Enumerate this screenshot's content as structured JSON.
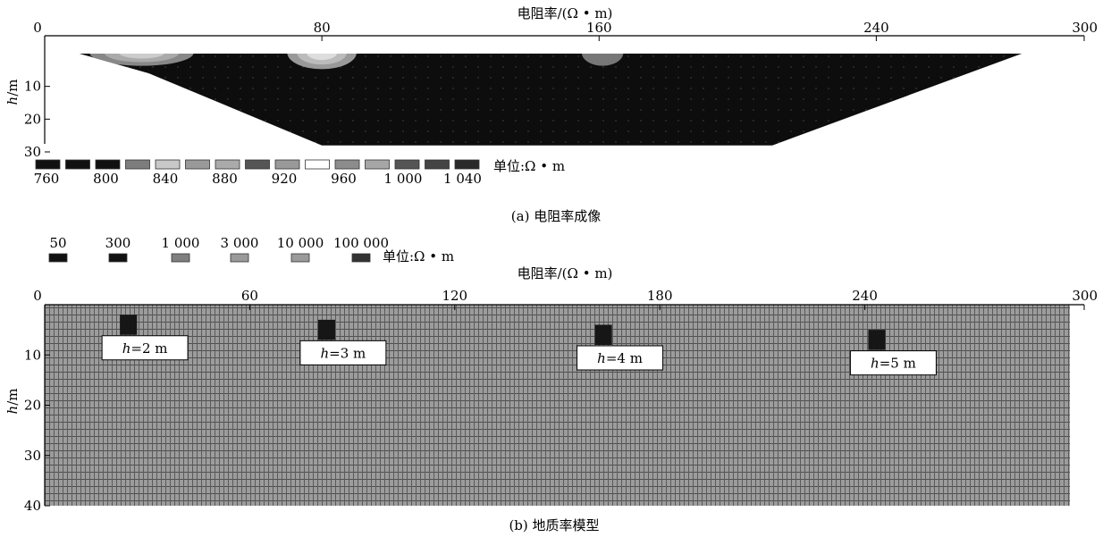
{
  "chart_data": [
    {
      "type": "heatmap",
      "title": "电阻率/(Ω • m)",
      "caption": "(a) 电阻率成像",
      "xlabel": "",
      "ylabel_italic": "h",
      "ylabel_rest": "/m",
      "xlim": [
        0,
        300
      ],
      "ylim": [
        30,
        0
      ],
      "x_ticks": [
        0,
        80,
        160,
        240,
        300
      ],
      "y_ticks": [
        10,
        20,
        30
      ],
      "section_polygon": [
        [
          10,
          0
        ],
        [
          30,
          6
        ],
        [
          80,
          28
        ],
        [
          210,
          28
        ],
        [
          282,
          0
        ]
      ],
      "background_resistivity": 760,
      "anomalies": [
        {
          "x_center": 28,
          "depth_top": 0,
          "depth_bottom": 4,
          "width": 30,
          "shades": [
            "#888888",
            "#aaaaaa",
            "#cccccc"
          ]
        },
        {
          "x_center": 80,
          "depth_top": 0,
          "depth_bottom": 5,
          "width": 20,
          "shades": [
            "#999999",
            "#bbbbbb",
            "#dddddd"
          ]
        },
        {
          "x_center": 161,
          "depth_top": 0,
          "depth_bottom": 4,
          "width": 12,
          "shades": [
            "#777777"
          ]
        }
      ],
      "legend": {
        "unit": "单位:Ω • m",
        "swatches": [
          "#111111",
          "#111111",
          "#111111",
          "#7d7d7d",
          "#c8c8c8",
          "#999999",
          "#aaaaaa",
          "#555555",
          "#999999",
          "#ffffff",
          "#8c8c8c",
          "#a6a6a6",
          "#555555",
          "#444444",
          "#2a2a2a"
        ],
        "labels": [
          "760",
          "800",
          "840",
          "880",
          "920",
          "960",
          "1 000",
          "1 040"
        ]
      }
    },
    {
      "type": "heatmap",
      "title": "电阻率/(Ω • m)",
      "caption": "(b) 地质率模型",
      "xlabel": "",
      "ylabel_italic": "h",
      "ylabel_rest": "/m",
      "xlim": [
        0,
        300
      ],
      "ylim": [
        40,
        0
      ],
      "x_ticks": [
        0,
        60,
        120,
        180,
        240,
        300
      ],
      "y_ticks": [
        10,
        20,
        30,
        40
      ],
      "background_resistivity": 3000,
      "blocks": [
        {
          "x": 22,
          "width": 5,
          "depth_top": 2,
          "depth_bottom": 6,
          "label_var": "h",
          "label_rest": "=2 m"
        },
        {
          "x": 80,
          "width": 5,
          "depth_top": 3,
          "depth_bottom": 7,
          "label_var": "h",
          "label_rest": "=3 m"
        },
        {
          "x": 161,
          "width": 5,
          "depth_top": 4,
          "depth_bottom": 8,
          "label_var": "h",
          "label_rest": "=4 m"
        },
        {
          "x": 241,
          "width": 5,
          "depth_top": 5,
          "depth_bottom": 9,
          "label_var": "h",
          "label_rest": "=5 m"
        }
      ],
      "legend": {
        "unit": "单位:Ω • m",
        "labels": [
          "50",
          "300",
          "1 000",
          "3 000",
          "10 000",
          "100 000"
        ],
        "colors": [
          "#111111",
          "#111111",
          "#7f7f7f",
          "#9a9a9a",
          "#9a9a9a",
          "#333333"
        ]
      }
    }
  ]
}
